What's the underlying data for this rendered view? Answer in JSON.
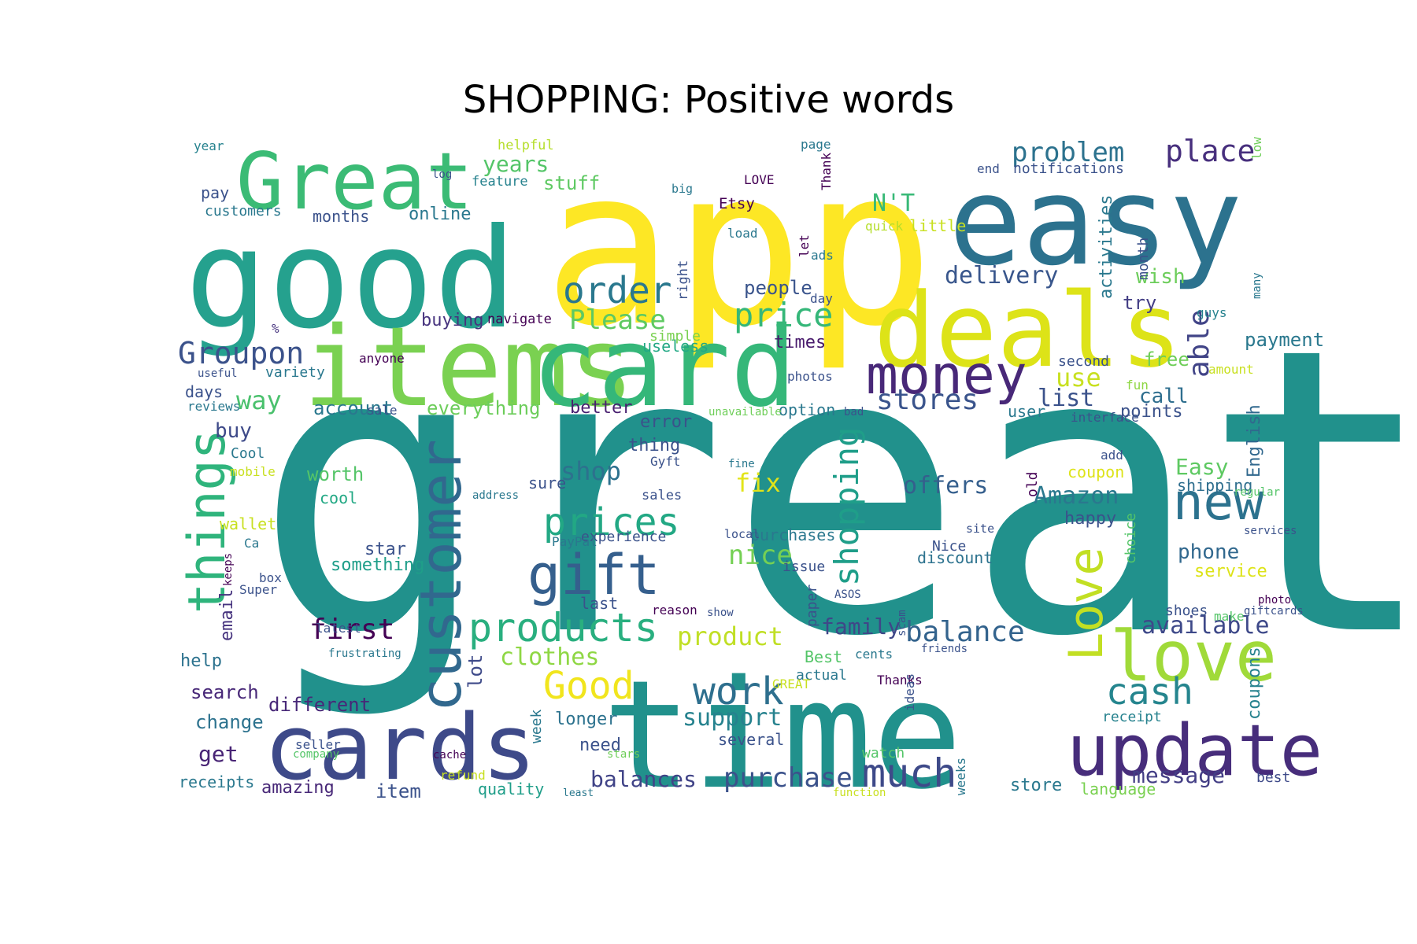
{
  "figure": {
    "title": "SHOPPING: Positive words"
  },
  "word_cloud": {
    "words": [
      {
        "text": "great",
        "color": "#21918c"
      },
      {
        "text": "app",
        "color": "#fde725"
      },
      {
        "text": "time",
        "color": "#21918c"
      },
      {
        "text": "easy",
        "color": "#2c728e"
      },
      {
        "text": "good",
        "color": "#25a18e"
      },
      {
        "text": "items",
        "color": "#7ad151"
      },
      {
        "text": "card",
        "color": "#35b779"
      },
      {
        "text": "deals",
        "color": "#dde318"
      },
      {
        "text": "Great",
        "color": "#3bbb75"
      },
      {
        "text": "cards",
        "color": "#3e4a89"
      },
      {
        "text": "update",
        "color": "#472d7b"
      },
      {
        "text": "money",
        "color": "#482878"
      },
      {
        "text": "customer",
        "color": "#31688e"
      },
      {
        "text": "things",
        "color": "#2fb47c"
      },
      {
        "text": "gift",
        "color": "#355f8d"
      },
      {
        "text": "love",
        "color": "#a0da39"
      },
      {
        "text": "new",
        "color": "#2c728e"
      },
      {
        "text": "Love",
        "color": "#c2df23"
      },
      {
        "text": "products",
        "color": "#29af7f"
      },
      {
        "text": "prices",
        "color": "#22a884"
      },
      {
        "text": "shopping",
        "color": "#1f9e89"
      },
      {
        "text": "order",
        "color": "#2a788e"
      },
      {
        "text": "price",
        "color": "#35b779"
      },
      {
        "text": "much",
        "color": "#3e4a89"
      },
      {
        "text": "work",
        "color": "#2e6f8e"
      },
      {
        "text": "Good",
        "color": "#f1e51d"
      },
      {
        "text": "cash",
        "color": "#25858e"
      },
      {
        "text": "balance",
        "color": "#33638d"
      },
      {
        "text": "Groupon",
        "color": "#3b528b"
      },
      {
        "text": "Please",
        "color": "#5ec962"
      },
      {
        "text": "place",
        "color": "#472f7d"
      },
      {
        "text": "problem",
        "color": "#2c728e"
      },
      {
        "text": "delivery",
        "color": "#39568c"
      },
      {
        "text": "N'T",
        "color": "#38b977"
      },
      {
        "text": "able",
        "color": "#414487"
      },
      {
        "text": "stores",
        "color": "#3a548c"
      },
      {
        "text": "Amazon",
        "color": "#2a788e"
      },
      {
        "text": "offers",
        "color": "#355f8d"
      },
      {
        "text": "first",
        "color": "#440154"
      },
      {
        "text": "clothes",
        "color": "#8fd744"
      },
      {
        "text": "product",
        "color": "#c0df25"
      },
      {
        "text": "purchase",
        "color": "#3b528b"
      },
      {
        "text": "support",
        "color": "#26828e"
      },
      {
        "text": "balances",
        "color": "#404387"
      },
      {
        "text": "message",
        "color": "#433e85"
      },
      {
        "text": "available",
        "color": "#3e4989"
      },
      {
        "text": "family",
        "color": "#3f4788"
      },
      {
        "text": "nice",
        "color": "#75d054"
      },
      {
        "text": "fix",
        "color": "#e2e418"
      },
      {
        "text": "shop",
        "color": "#2d718e"
      },
      {
        "text": "way",
        "color": "#4ac16d"
      },
      {
        "text": "years",
        "color": "#54c568"
      },
      {
        "text": "stuff",
        "color": "#5ec962"
      },
      {
        "text": "online",
        "color": "#2a788e"
      },
      {
        "text": "list",
        "color": "#3b528b"
      },
      {
        "text": "use",
        "color": "#c8e020"
      },
      {
        "text": "people",
        "color": "#3a548c"
      },
      {
        "text": "wish",
        "color": "#6ccd5a"
      },
      {
        "text": "try",
        "color": "#433e85"
      },
      {
        "text": "free",
        "color": "#6ece58"
      },
      {
        "text": "call",
        "color": "#2e6e8e"
      },
      {
        "text": "points",
        "color": "#3b528b"
      },
      {
        "text": "Easy",
        "color": "#5ec962"
      },
      {
        "text": "English",
        "color": "#31688e"
      },
      {
        "text": "coupons",
        "color": "#26828e"
      },
      {
        "text": "phone",
        "color": "#31688e"
      },
      {
        "text": "service",
        "color": "#dde318"
      },
      {
        "text": "shipping",
        "color": "#2e6e8e"
      },
      {
        "text": "coupon",
        "color": "#dde318"
      },
      {
        "text": "happy",
        "color": "#3b528b"
      },
      {
        "text": "store",
        "color": "#2a788e"
      },
      {
        "text": "best",
        "color": "#3e4a89"
      },
      {
        "text": "language",
        "color": "#7ad151"
      },
      {
        "text": "receipt",
        "color": "#26828e"
      },
      {
        "text": "buying",
        "color": "#46337e"
      },
      {
        "text": "navigate",
        "color": "#440154"
      },
      {
        "text": "times",
        "color": "#481a6c"
      },
      {
        "text": "useless",
        "color": "#22a884"
      },
      {
        "text": "simple",
        "color": "#7ad151"
      },
      {
        "text": "account",
        "color": "#2a788e"
      },
      {
        "text": "everything",
        "color": "#6ccd5a"
      },
      {
        "text": "better",
        "color": "#481f70"
      },
      {
        "text": "error",
        "color": "#3b528b"
      },
      {
        "text": "thing",
        "color": "#3b528b"
      },
      {
        "text": "buy",
        "color": "#3e4a89"
      },
      {
        "text": "days",
        "color": "#3b528b"
      },
      {
        "text": "worth",
        "color": "#54c568"
      },
      {
        "text": "cool",
        "color": "#22a884"
      },
      {
        "text": "star",
        "color": "#3b528b"
      },
      {
        "text": "something",
        "color": "#1f9e89"
      },
      {
        "text": "email",
        "color": "#46337e"
      },
      {
        "text": "help",
        "color": "#2c728e"
      },
      {
        "text": "search",
        "color": "#482878"
      },
      {
        "text": "change",
        "color": "#2c728e"
      },
      {
        "text": "get",
        "color": "#482475"
      },
      {
        "text": "receipts",
        "color": "#2a788e"
      },
      {
        "text": "amazing",
        "color": "#482878"
      },
      {
        "text": "different",
        "color": "#482878"
      },
      {
        "text": "item",
        "color": "#3b528b"
      },
      {
        "text": "lot",
        "color": "#3e4a89"
      },
      {
        "text": "longer",
        "color": "#2c728e"
      },
      {
        "text": "need",
        "color": "#3b528b"
      },
      {
        "text": "several",
        "color": "#3b528b"
      },
      {
        "text": "quality",
        "color": "#1f9e89"
      },
      {
        "text": "sure",
        "color": "#3b528b"
      },
      {
        "text": "experience",
        "color": "#3b528b"
      },
      {
        "text": "purchases",
        "color": "#2a788e"
      },
      {
        "text": "issue",
        "color": "#3b528b"
      },
      {
        "text": "discount",
        "color": "#2c728e"
      },
      {
        "text": "Nice",
        "color": "#3b528b"
      },
      {
        "text": "last",
        "color": "#3b528b"
      },
      {
        "text": "option",
        "color": "#2a788e"
      },
      {
        "text": "user",
        "color": "#2a788e"
      },
      {
        "text": "pay",
        "color": "#3b528b"
      },
      {
        "text": "customers",
        "color": "#2a788e"
      },
      {
        "text": "months",
        "color": "#3b528b"
      },
      {
        "text": "year",
        "color": "#26828e"
      },
      {
        "text": "helpful",
        "color": "#b5de2b"
      },
      {
        "text": "feature",
        "color": "#26828e"
      },
      {
        "text": "log",
        "color": "#3b528b"
      },
      {
        "text": "page",
        "color": "#2a788e"
      },
      {
        "text": "LOVE",
        "color": "#440154"
      },
      {
        "text": "Etsy",
        "color": "#440154"
      },
      {
        "text": "load",
        "color": "#2a788e"
      },
      {
        "text": "big",
        "color": "#2a788e"
      },
      {
        "text": "Thank",
        "color": "#440154"
      },
      {
        "text": "end",
        "color": "#3b528b"
      },
      {
        "text": "notifications",
        "color": "#3b528b"
      },
      {
        "text": "low",
        "color": "#6ece58"
      },
      {
        "text": "quick",
        "color": "#b5de2b"
      },
      {
        "text": "little",
        "color": "#c8e020"
      },
      {
        "text": "ads",
        "color": "#2a788e"
      },
      {
        "text": "let",
        "color": "#440154"
      },
      {
        "text": "right",
        "color": "#3b528b"
      },
      {
        "text": "day",
        "color": "#3b528b"
      },
      {
        "text": "activities",
        "color": "#2a788e"
      },
      {
        "text": "month",
        "color": "#3b528b"
      },
      {
        "text": "many",
        "color": "#2a788e"
      },
      {
        "text": "guys",
        "color": "#26828e"
      },
      {
        "text": "payment",
        "color": "#2a788e"
      },
      {
        "text": "amount",
        "color": "#c8e020"
      },
      {
        "text": "%",
        "color": "#46337e"
      },
      {
        "text": "variety",
        "color": "#2a788e"
      },
      {
        "text": "useful",
        "color": "#3b528b"
      },
      {
        "text": "anyone",
        "color": "#440154"
      },
      {
        "text": "reviews",
        "color": "#2a788e"
      },
      {
        "text": "sale",
        "color": "#3b528b"
      },
      {
        "text": "photos",
        "color": "#3b528b"
      },
      {
        "text": "second",
        "color": "#3b528b"
      },
      {
        "text": "fun",
        "color": "#8fd744"
      },
      {
        "text": "unavailable",
        "color": "#6ece58"
      },
      {
        "text": "bad",
        "color": "#3b528b"
      },
      {
        "text": "interface",
        "color": "#3b528b"
      },
      {
        "text": "Cool",
        "color": "#2a788e"
      },
      {
        "text": "mobile",
        "color": "#c8e020"
      },
      {
        "text": "Gyft",
        "color": "#3b528b"
      },
      {
        "text": "fine",
        "color": "#2a788e"
      },
      {
        "text": "add",
        "color": "#3b528b"
      },
      {
        "text": "address",
        "color": "#2a788e"
      },
      {
        "text": "sales",
        "color": "#3b528b"
      },
      {
        "text": "old",
        "color": "#440154"
      },
      {
        "text": "regular",
        "color": "#54c568"
      },
      {
        "text": "wallet",
        "color": "#c8e020"
      },
      {
        "text": "Ca",
        "color": "#2a788e"
      },
      {
        "text": "PayPal",
        "color": "#2a788e"
      },
      {
        "text": "local",
        "color": "#3b528b"
      },
      {
        "text": "site",
        "color": "#3b528b"
      },
      {
        "text": "choice",
        "color": "#54c568"
      },
      {
        "text": "services",
        "color": "#3b528b"
      },
      {
        "text": "box",
        "color": "#3b528b"
      },
      {
        "text": "Super",
        "color": "#3b528b"
      },
      {
        "text": "keeps",
        "color": "#440154"
      },
      {
        "text": "reason",
        "color": "#440154"
      },
      {
        "text": "show",
        "color": "#3b528b"
      },
      {
        "text": "paper",
        "color": "#3b528b"
      },
      {
        "text": "ASOS",
        "color": "#3b528b"
      },
      {
        "text": "shoes",
        "color": "#3b528b"
      },
      {
        "text": "giftcards",
        "color": "#3b528b"
      },
      {
        "text": "latest",
        "color": "#3b528b"
      },
      {
        "text": "frustrating",
        "color": "#2a788e"
      },
      {
        "text": "cents",
        "color": "#2a788e"
      },
      {
        "text": "Best",
        "color": "#54c568"
      },
      {
        "text": "friends",
        "color": "#3b528b"
      },
      {
        "text": "scam",
        "color": "#3b528b"
      },
      {
        "text": "photo",
        "color": "#440154"
      },
      {
        "text": "actual",
        "color": "#2a788e"
      },
      {
        "text": "make",
        "color": "#54c568"
      },
      {
        "text": "Thanks",
        "color": "#440154"
      },
      {
        "text": "week",
        "color": "#2a788e"
      },
      {
        "text": "GREAT",
        "color": "#c8e020"
      },
      {
        "text": "watch",
        "color": "#54c568"
      },
      {
        "text": "seller",
        "color": "#3b528b"
      },
      {
        "text": "company",
        "color": "#54c568"
      },
      {
        "text": "cache",
        "color": "#440154"
      },
      {
        "text": "stars",
        "color": "#6ece58"
      },
      {
        "text": "ideas",
        "color": "#3b528b"
      },
      {
        "text": "weeks",
        "color": "#2a788e"
      },
      {
        "text": "refund",
        "color": "#c8e020"
      },
      {
        "text": "least",
        "color": "#2a788e"
      },
      {
        "text": "function",
        "color": "#c8e020"
      }
    ]
  }
}
